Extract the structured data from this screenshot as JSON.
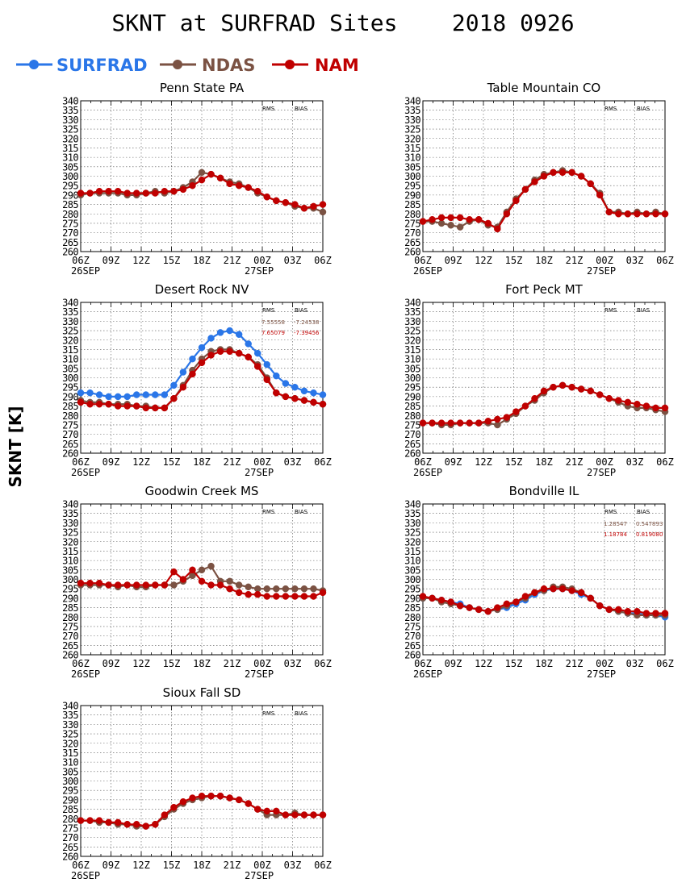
{
  "page": {
    "title": "SKNT at SURFRAD Sites    2018 0926",
    "ylabel": "SKNT [K]"
  },
  "legend": [
    {
      "name": "SURFRAD",
      "color": "#2a76e8"
    },
    {
      "name": "NDAS",
      "color": "#7b5243"
    },
    {
      "name": "NAM",
      "color": "#c00000"
    }
  ],
  "chart_data": [
    {
      "type": "line",
      "title": "Penn State PA",
      "x_ticks": [
        "06Z",
        "09Z",
        "12Z",
        "15Z",
        "18Z",
        "21Z",
        "00Z",
        "03Z",
        "06Z"
      ],
      "date_labels": [
        "26SEP",
        "27SEP"
      ],
      "ylim": [
        260,
        340
      ],
      "y_ticks": [
        260,
        265,
        270,
        275,
        280,
        285,
        290,
        295,
        300,
        305,
        310,
        315,
        320,
        325,
        330,
        335,
        340
      ],
      "grid": true,
      "stats_header": [
        "RMS",
        "BIAS"
      ],
      "stats": [],
      "series": [
        {
          "name": "SURFRAD",
          "values": []
        },
        {
          "name": "NDAS",
          "values": [
            290,
            291,
            291,
            291,
            291,
            290,
            290,
            291,
            292,
            291,
            292,
            294,
            297,
            302,
            301,
            299,
            297,
            296,
            294,
            291,
            289,
            287,
            286,
            284,
            283,
            283,
            281
          ]
        },
        {
          "name": "NAM",
          "values": [
            291,
            291,
            292,
            292,
            292,
            291,
            291,
            291,
            291,
            292,
            292,
            293,
            295,
            298,
            301,
            299,
            296,
            295,
            294,
            292,
            289,
            287,
            286,
            285,
            283,
            284,
            285
          ]
        }
      ]
    },
    {
      "type": "line",
      "title": "Table Mountain CO",
      "x_ticks": [
        "06Z",
        "09Z",
        "12Z",
        "15Z",
        "18Z",
        "21Z",
        "00Z",
        "03Z",
        "06Z"
      ],
      "date_labels": [
        "26SEP",
        "27SEP"
      ],
      "ylim": [
        260,
        340
      ],
      "y_ticks": [
        260,
        265,
        270,
        275,
        280,
        285,
        290,
        295,
        300,
        305,
        310,
        315,
        320,
        325,
        330,
        335,
        340
      ],
      "grid": true,
      "stats_header": [
        "RMS",
        "BIAS"
      ],
      "stats": [],
      "series": [
        {
          "name": "SURFRAD",
          "values": []
        },
        {
          "name": "NDAS",
          "values": [
            276,
            276,
            275,
            274,
            273,
            276,
            277,
            274,
            273,
            281,
            288,
            293,
            298,
            301,
            302,
            303,
            302,
            300,
            296,
            291,
            281,
            281,
            280,
            281,
            280,
            281,
            280
          ]
        },
        {
          "name": "NAM",
          "values": [
            276,
            277,
            278,
            278,
            278,
            277,
            277,
            275,
            272,
            280,
            287,
            293,
            297,
            300,
            302,
            302,
            302,
            300,
            296,
            290,
            281,
            280,
            280,
            280,
            280,
            280,
            280
          ]
        }
      ]
    },
    {
      "type": "line",
      "title": "Desert Rock NV",
      "x_ticks": [
        "06Z",
        "09Z",
        "12Z",
        "15Z",
        "18Z",
        "21Z",
        "00Z",
        "03Z",
        "06Z"
      ],
      "date_labels": [
        "26SEP",
        "27SEP"
      ],
      "ylim": [
        260,
        340
      ],
      "y_ticks": [
        260,
        265,
        270,
        275,
        280,
        285,
        290,
        295,
        300,
        305,
        310,
        315,
        320,
        325,
        330,
        335,
        340
      ],
      "grid": true,
      "stats_header": [
        "RMS",
        "BIAS"
      ],
      "stats": [
        {
          "series": "NDAS",
          "rms": "7.55558",
          "bias": "-7.24538"
        },
        {
          "series": "NAM",
          "rms": "7.65079",
          "bias": "-7.39456"
        }
      ],
      "series": [
        {
          "name": "SURFRAD",
          "values": [
            292,
            292,
            291,
            290,
            290,
            290,
            291,
            291,
            291,
            291,
            296,
            303,
            310,
            316,
            321,
            324,
            325,
            323,
            318,
            313,
            307,
            301,
            297,
            295,
            293,
            292,
            291
          ]
        },
        {
          "name": "NDAS",
          "values": [
            288,
            287,
            287,
            286,
            286,
            286,
            285,
            285,
            284,
            284,
            289,
            296,
            304,
            310,
            314,
            315,
            315,
            313,
            311,
            307,
            300,
            292,
            290,
            289,
            288,
            287,
            286
          ]
        },
        {
          "name": "NAM",
          "values": [
            287,
            286,
            286,
            286,
            285,
            285,
            285,
            284,
            284,
            284,
            289,
            295,
            302,
            308,
            312,
            314,
            314,
            313,
            311,
            306,
            299,
            292,
            290,
            289,
            288,
            287,
            286
          ]
        }
      ]
    },
    {
      "type": "line",
      "title": "Fort Peck MT",
      "x_ticks": [
        "06Z",
        "09Z",
        "12Z",
        "15Z",
        "18Z",
        "21Z",
        "00Z",
        "03Z",
        "06Z"
      ],
      "date_labels": [
        "26SEP",
        "27SEP"
      ],
      "ylim": [
        260,
        340
      ],
      "y_ticks": [
        260,
        265,
        270,
        275,
        280,
        285,
        290,
        295,
        300,
        305,
        310,
        315,
        320,
        325,
        330,
        335,
        340
      ],
      "grid": true,
      "stats_header": [
        "RMS",
        "BIAS"
      ],
      "stats": [],
      "series": [
        {
          "name": "SURFRAD",
          "values": []
        },
        {
          "name": "NDAS",
          "values": [
            276,
            276,
            275,
            275,
            276,
            276,
            276,
            276,
            275,
            278,
            281,
            285,
            288,
            292,
            295,
            296,
            295,
            294,
            293,
            291,
            289,
            287,
            285,
            284,
            284,
            283,
            282
          ]
        },
        {
          "name": "NAM",
          "values": [
            276,
            276,
            276,
            276,
            276,
            276,
            276,
            277,
            278,
            279,
            282,
            285,
            289,
            293,
            295,
            296,
            295,
            294,
            293,
            291,
            289,
            288,
            287,
            286,
            285,
            284,
            284
          ]
        }
      ]
    },
    {
      "type": "line",
      "title": "Goodwin Creek MS",
      "x_ticks": [
        "06Z",
        "09Z",
        "12Z",
        "15Z",
        "18Z",
        "21Z",
        "00Z",
        "03Z",
        "06Z"
      ],
      "date_labels": [
        "26SEP",
        "27SEP"
      ],
      "ylim": [
        260,
        340
      ],
      "y_ticks": [
        260,
        265,
        270,
        275,
        280,
        285,
        290,
        295,
        300,
        305,
        310,
        315,
        320,
        325,
        330,
        335,
        340
      ],
      "grid": true,
      "stats_header": [
        "RMS",
        "BIAS"
      ],
      "stats": [],
      "series": [
        {
          "name": "SURFRAD",
          "values": []
        },
        {
          "name": "NDAS",
          "values": [
            297,
            297,
            297,
            297,
            296,
            297,
            296,
            296,
            297,
            297,
            297,
            299,
            302,
            305,
            307,
            299,
            299,
            297,
            296,
            295,
            295,
            295,
            295,
            295,
            295,
            295,
            294
          ]
        },
        {
          "name": "NAM",
          "values": [
            298,
            298,
            298,
            297,
            297,
            297,
            297,
            297,
            297,
            297,
            304,
            300,
            305,
            299,
            297,
            297,
            295,
            293,
            292,
            292,
            291,
            291,
            291,
            291,
            291,
            291,
            293
          ]
        }
      ]
    },
    {
      "type": "line",
      "title": "Bondville IL",
      "x_ticks": [
        "06Z",
        "09Z",
        "12Z",
        "15Z",
        "18Z",
        "21Z",
        "00Z",
        "03Z",
        "06Z"
      ],
      "date_labels": [
        "26SEP",
        "27SEP"
      ],
      "ylim": [
        260,
        340
      ],
      "y_ticks": [
        260,
        265,
        270,
        275,
        280,
        285,
        290,
        295,
        300,
        305,
        310,
        315,
        320,
        325,
        330,
        335,
        340
      ],
      "grid": true,
      "stats_header": [
        "RMS",
        "BIAS"
      ],
      "stats": [
        {
          "series": "NDAS",
          "rms": "1.28547",
          "bias": "0.547893"
        },
        {
          "series": "NAM",
          "rms": "1.18784",
          "bias": "0.819080"
        }
      ],
      "series": [
        {
          "name": "SURFRAD",
          "values": [
            290,
            290,
            289,
            288,
            287,
            285,
            284,
            283,
            284,
            285,
            287,
            289,
            292,
            294,
            295,
            295,
            294,
            292,
            290,
            286,
            284,
            283,
            282,
            282,
            281,
            281,
            280
          ]
        },
        {
          "name": "NDAS",
          "values": [
            290,
            290,
            288,
            287,
            286,
            285,
            284,
            283,
            284,
            286,
            288,
            290,
            293,
            294,
            296,
            296,
            295,
            293,
            290,
            286,
            284,
            283,
            282,
            281,
            281,
            281,
            281
          ]
        },
        {
          "name": "NAM",
          "values": [
            291,
            290,
            289,
            288,
            286,
            285,
            284,
            283,
            285,
            287,
            288,
            291,
            293,
            295,
            295,
            295,
            294,
            293,
            290,
            286,
            284,
            284,
            283,
            283,
            282,
            282,
            282
          ]
        }
      ]
    },
    {
      "type": "line",
      "title": "Sioux Fall SD",
      "x_ticks": [
        "06Z",
        "09Z",
        "12Z",
        "15Z",
        "18Z",
        "21Z",
        "00Z",
        "03Z",
        "06Z"
      ],
      "date_labels": [
        "26SEP",
        "27SEP"
      ],
      "ylim": [
        260,
        340
      ],
      "y_ticks": [
        260,
        265,
        270,
        275,
        280,
        285,
        290,
        295,
        300,
        305,
        310,
        315,
        320,
        325,
        330,
        335,
        340
      ],
      "grid": true,
      "stats_header": [
        "RMS",
        "BIAS"
      ],
      "stats": [],
      "series": [
        {
          "name": "SURFRAD",
          "values": []
        },
        {
          "name": "NDAS",
          "values": [
            279,
            279,
            278,
            278,
            277,
            277,
            276,
            276,
            277,
            281,
            285,
            288,
            290,
            291,
            292,
            292,
            291,
            290,
            288,
            285,
            282,
            282,
            282,
            283,
            282,
            282,
            282
          ]
        },
        {
          "name": "NAM",
          "values": [
            279,
            279,
            279,
            278,
            278,
            277,
            277,
            276,
            277,
            282,
            286,
            289,
            291,
            292,
            292,
            292,
            291,
            290,
            288,
            285,
            284,
            284,
            282,
            282,
            282,
            282,
            282
          ]
        }
      ]
    }
  ]
}
